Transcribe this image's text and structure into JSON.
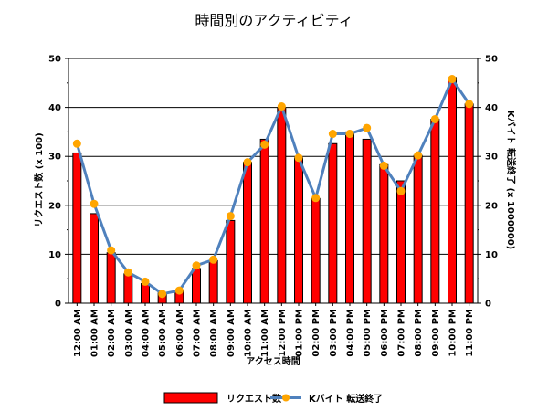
{
  "chart_data": {
    "type": "bar",
    "title": "時間別のアクティビティ",
    "xlabel": "アクセス時間",
    "ylabel": "リクエスト数 (x 100)",
    "y2label": "Kバイト 転送終了 (x 1000000)",
    "ylim": [
      0,
      50
    ],
    "y2lim": [
      0,
      50
    ],
    "yticks": [
      0,
      10,
      20,
      30,
      40,
      50
    ],
    "grid": true,
    "legend_position": "bottom",
    "categories": [
      "12:00 AM",
      "01:00 AM",
      "02:00 AM",
      "03:00 AM",
      "04:00 AM",
      "05:00 AM",
      "06:00 AM",
      "07:00 AM",
      "08:00 AM",
      "09:00 AM",
      "10:00 AM",
      "11:00 AM",
      "12:00 PM",
      "01:00 PM",
      "02:00 PM",
      "03:00 PM",
      "04:00 PM",
      "05:00 PM",
      "06:00 PM",
      "07:00 PM",
      "08:00 PM",
      "09:00 PM",
      "10:00 PM",
      "11:00 PM"
    ],
    "series": [
      {
        "name": "リクエスト数",
        "type": "bar",
        "axis": "left",
        "color": "#ff0000",
        "values": [
          30.7,
          18.3,
          10.3,
          6.0,
          4.0,
          2.1,
          2.6,
          7.1,
          8.7,
          16.9,
          28.8,
          33.5,
          39.9,
          29.7,
          21.4,
          32.6,
          35.0,
          33.5,
          28.3,
          25.0,
          30.2,
          37.6,
          46.1,
          40.7
        ]
      },
      {
        "name": "Kバイト 転送終了",
        "type": "line",
        "axis": "right",
        "color": "#4f81bd",
        "marker_color": "#ffa500",
        "values": [
          32.6,
          20.3,
          10.8,
          6.3,
          4.4,
          1.9,
          2.6,
          7.7,
          8.9,
          17.8,
          28.8,
          32.4,
          40.2,
          29.7,
          21.5,
          34.6,
          34.6,
          35.8,
          28.1,
          22.9,
          30.2,
          37.6,
          45.8,
          40.7
        ]
      }
    ]
  }
}
